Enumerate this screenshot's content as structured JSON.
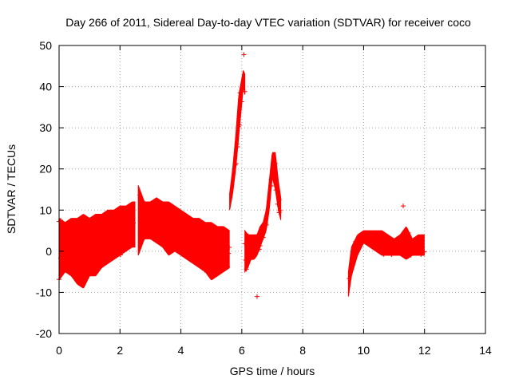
{
  "chart_data": {
    "type": "scatter",
    "title": "Day 266 of 2011, Sidereal Day-to-day VTEC variation (SDTVAR) for receiver coco",
    "xlabel": "GPS time / hours",
    "ylabel": "SDTVAR / TECUs",
    "xlim": [
      0,
      14
    ],
    "ylim": [
      -20,
      50
    ],
    "xticks": [
      0,
      2,
      4,
      6,
      8,
      10,
      12,
      14
    ],
    "yticks": [
      -20,
      -10,
      0,
      10,
      20,
      30,
      40,
      50
    ],
    "xtick_labels": [
      "0",
      "2",
      "4",
      "6",
      "8",
      "10",
      "12",
      "14"
    ],
    "ytick_labels": [
      "-20",
      "-10",
      "0",
      "10",
      "20",
      "30",
      "40",
      "50"
    ],
    "grid": true,
    "marker": "+",
    "color": "#ff0000",
    "series": [
      {
        "name": "SDTVAR",
        "segments": [
          {
            "x": [
              0.0,
              0.2,
              0.4,
              0.6,
              0.8,
              1.0,
              1.2,
              1.4,
              1.6,
              1.8,
              2.0,
              2.2,
              2.4,
              2.5
            ],
            "low": [
              -7,
              -5,
              -6,
              -8,
              -9,
              -6,
              -6,
              -4,
              -3,
              -2,
              -1,
              0,
              1,
              1
            ],
            "high": [
              8,
              7,
              8,
              8,
              9,
              8,
              9,
              9,
              10,
              10,
              11,
              11,
              12,
              12
            ]
          },
          {
            "x": [
              2.6,
              2.8,
              3.0,
              3.2,
              3.4,
              3.6,
              3.8,
              4.0,
              4.2,
              4.4,
              4.6,
              4.8,
              5.0,
              5.2,
              5.4,
              5.6
            ],
            "low": [
              -1,
              3,
              3,
              2,
              1,
              -1,
              0,
              -1,
              -2,
              -3,
              -4,
              -5,
              -7,
              -6,
              -5,
              -4
            ],
            "high": [
              16,
              12,
              12,
              13,
              12,
              12,
              11,
              10,
              9,
              8,
              8,
              7,
              7,
              6,
              6,
              5
            ]
          },
          {
            "x": [
              5.6,
              5.7,
              5.8,
              5.9,
              6.0,
              6.05,
              6.1
            ],
            "low": [
              10,
              14,
              20,
              28,
              36,
              40,
              38
            ],
            "high": [
              14,
              20,
              28,
              38,
              42,
              44,
              43
            ]
          },
          {
            "x": [
              6.1,
              6.2,
              6.3,
              6.4,
              6.5,
              6.6,
              6.7,
              6.8,
              6.9,
              7.0,
              7.1,
              7.2,
              7.3
            ],
            "low": [
              -5,
              -4,
              -2,
              -2,
              -1,
              1,
              3,
              5,
              10,
              18,
              15,
              10,
              7
            ],
            "high": [
              5,
              4,
              4,
              4,
              4,
              6,
              7,
              10,
              17,
              24,
              24,
              17,
              12
            ]
          },
          {
            "x": [
              9.5,
              9.6,
              9.8,
              10.0,
              10.2,
              10.4,
              10.6,
              10.8,
              11.0,
              11.2,
              11.4,
              11.6,
              11.8,
              12.0
            ],
            "low": [
              -11,
              -6,
              -1,
              2,
              1,
              0,
              -1,
              -1,
              -1,
              -1,
              -2,
              -1,
              -1,
              -1
            ],
            "high": [
              -5,
              1,
              4,
              5,
              5,
              5,
              5,
              4,
              3,
              4,
              6,
              3,
              4,
              4
            ]
          }
        ],
        "spikes": [
          {
            "x": 6.07,
            "y": 47.8
          },
          {
            "x": 6.5,
            "y": -11
          },
          {
            "x": 11.3,
            "y": 11
          }
        ]
      }
    ]
  }
}
